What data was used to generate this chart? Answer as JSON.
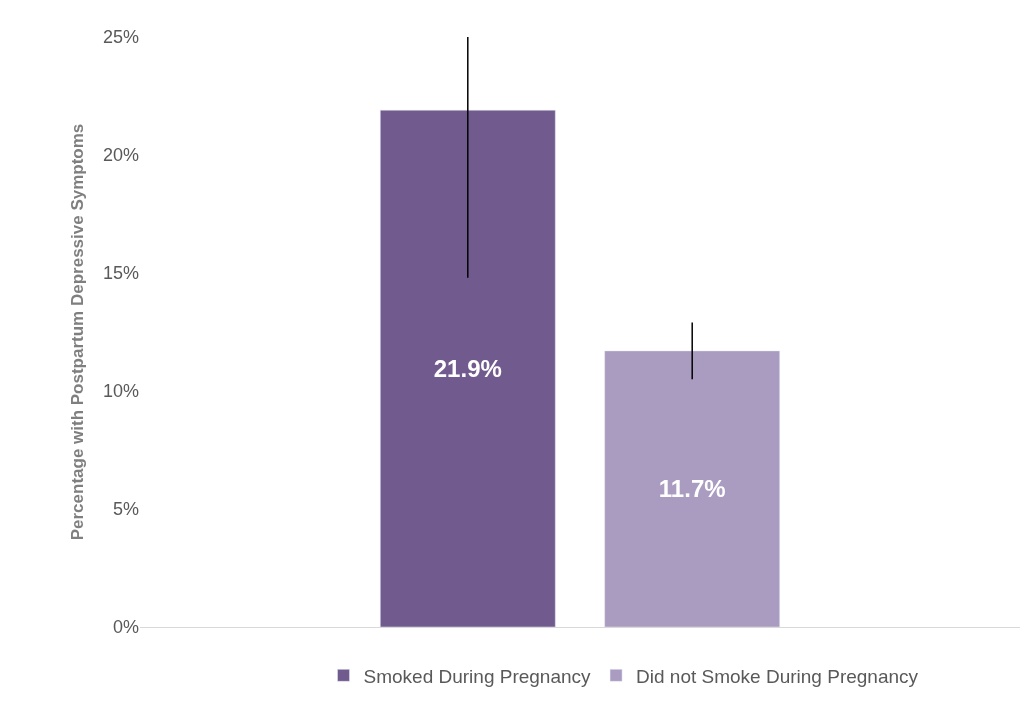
{
  "chart_data": {
    "type": "bar",
    "ylabel": "Percentage with Postpartum Depressive Symptoms",
    "categories": [
      null
    ],
    "series": [
      {
        "name": "Smoked During Pregnancy",
        "color": "#715a8e",
        "values": [
          21.9
        ],
        "errors": [
          [
            14.8,
            25.0
          ]
        ],
        "value_labels": [
          "21.9%"
        ]
      },
      {
        "name": "Did not Smoke During Pregnancy",
        "color": "#aa9bc0",
        "values": [
          11.7
        ],
        "errors": [
          [
            10.5,
            12.9
          ]
        ],
        "value_labels": [
          "11.7%"
        ]
      }
    ],
    "ylim": [
      0,
      25
    ],
    "yticks": [
      {
        "value": 0,
        "label": "0%"
      },
      {
        "value": 5,
        "label": "5%"
      },
      {
        "value": 10,
        "label": "10%"
      },
      {
        "value": 15,
        "label": "15%"
      },
      {
        "value": 20,
        "label": "20%"
      },
      {
        "value": 25,
        "label": "25%"
      }
    ],
    "legend": "bottom"
  }
}
